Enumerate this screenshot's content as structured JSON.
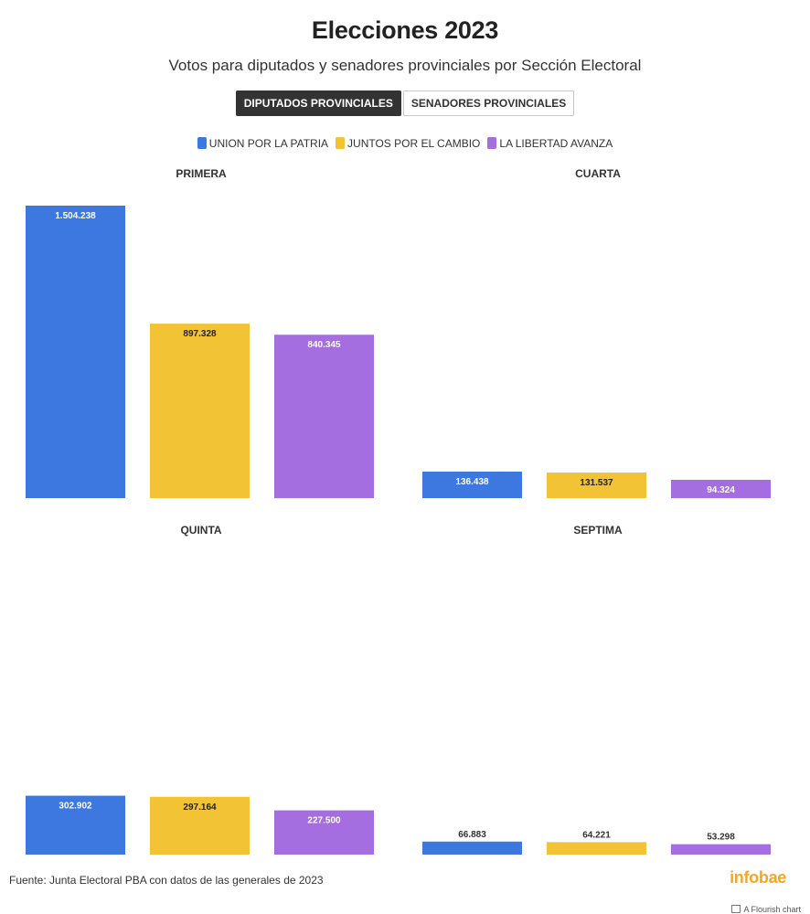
{
  "header": {
    "title": "Elecciones 2023",
    "subtitle": "Votos para diputados y senadores provinciales por Sección Electoral"
  },
  "tabs": [
    {
      "label": "DIPUTADOS PROVINCIALES",
      "active": true
    },
    {
      "label": "SENADORES PROVINCIALES",
      "active": false
    }
  ],
  "legend": [
    {
      "label": "UNION POR LA PATRIA",
      "color": "#3d78e0"
    },
    {
      "label": "JUNTOS POR EL CAMBIO",
      "color": "#f2c335"
    },
    {
      "label": "LA LIBERTAD AVANZA",
      "color": "#a56ee0"
    }
  ],
  "chart_data": {
    "type": "bar",
    "ylim": [
      0,
      1504238
    ],
    "series_names": [
      "UNION POR LA PATRIA",
      "JUNTOS POR EL CAMBIO",
      "LA LIBERTAD AVANZA"
    ],
    "colors": [
      "#3d78e0",
      "#f2c335",
      "#a56ee0"
    ],
    "panels": [
      {
        "title": "PRIMERA",
        "values": [
          1504238,
          897328,
          840345
        ],
        "labels": [
          "1.504.238",
          "897.328",
          "840.345"
        ]
      },
      {
        "title": "CUARTA",
        "values": [
          136438,
          131537,
          94324
        ],
        "labels": [
          "136.438",
          "131.537",
          "94.324"
        ]
      },
      {
        "title": "QUINTA",
        "values": [
          302902,
          297164,
          227500
        ],
        "labels": [
          "302.902",
          "297.164",
          "227.500"
        ]
      },
      {
        "title": "SEPTIMA",
        "values": [
          66883,
          64221,
          53298
        ],
        "labels": [
          "66.883",
          "64.221",
          "53.298"
        ]
      }
    ]
  },
  "footer": {
    "source": "Fuente: Junta Electoral PBA con datos de las generales de 2023",
    "brand": "infobae",
    "credit": "A Flourish chart"
  }
}
